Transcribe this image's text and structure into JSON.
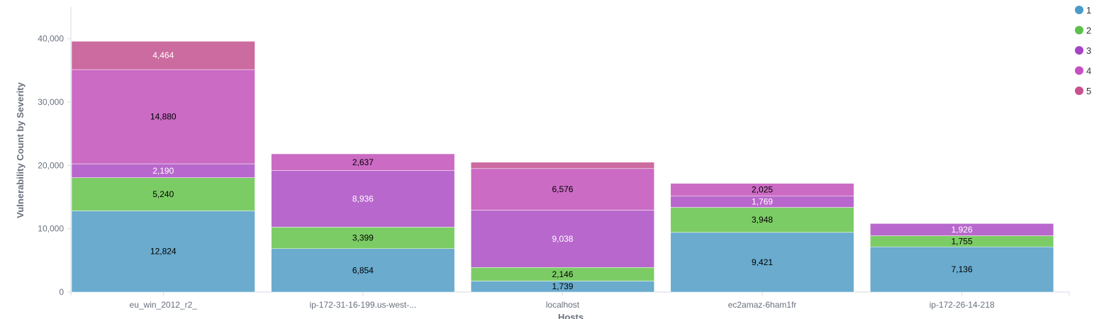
{
  "chart_data": {
    "type": "bar",
    "stacked": true,
    "title": "",
    "xlabel": "Hosts",
    "ylabel": "Vulnerability Count by Severity",
    "ylim": [
      0,
      45000
    ],
    "yticks": [
      0,
      10000,
      20000,
      30000,
      40000
    ],
    "ytick_labels": [
      "0",
      "10,000",
      "20,000",
      "30,000",
      "40,000"
    ],
    "grid": false,
    "legend_position": "top-right",
    "categories": [
      "eu_win_2012_r2_",
      "ip-172-31-16-199.us-west-...",
      "localhost",
      "ec2amaz-6ham1fr",
      "ip-172-26-14-218"
    ],
    "series": [
      {
        "name": "1",
        "color": "#6aabce",
        "legend_color": "#4a9bc8",
        "values": [
          12824,
          6854,
          1739,
          9421,
          7136
        ],
        "labels": [
          "12,824",
          "6,854",
          "1,739",
          "9,421",
          "7,136"
        ],
        "label_colors": [
          "#000000",
          "#000000",
          "#000000",
          "#000000",
          "#000000"
        ]
      },
      {
        "name": "2",
        "color": "#7ccc66",
        "legend_color": "#5dc04b",
        "values": [
          5240,
          3399,
          2146,
          3948,
          1755
        ],
        "labels": [
          "5,240",
          "3,399",
          "2,146",
          "3,948",
          "1,755"
        ],
        "label_colors": [
          "#000000",
          "#000000",
          "#000000",
          "#000000",
          "#000000"
        ]
      },
      {
        "name": "3",
        "color": "#b868cc",
        "legend_color": "#a644c6",
        "values": [
          2190,
          8936,
          9038,
          1769,
          1926
        ],
        "labels": [
          "2,190",
          "8,936",
          "9,038",
          "1,769",
          "1,926"
        ],
        "label_colors": [
          "#ffffff",
          "#ffffff",
          "#ffffff",
          "#ffffff",
          "#ffffff"
        ]
      },
      {
        "name": "4",
        "color": "#cb6bc4",
        "legend_color": "#c650c2",
        "values": [
          14880,
          2637,
          6576,
          2025,
          0
        ],
        "labels": [
          "14,880",
          "2,637",
          "6,576",
          "2,025",
          ""
        ],
        "label_colors": [
          "#000000",
          "#000000",
          "#000000",
          "#000000",
          "#000000"
        ]
      },
      {
        "name": "5",
        "color": "#cc6b9f",
        "legend_color": "#c9508e",
        "values": [
          4464,
          0,
          1000,
          0,
          0
        ],
        "labels": [
          "4,464",
          "",
          "",
          "",
          ""
        ],
        "label_colors": [
          "#ffffff",
          "#ffffff",
          "#ffffff",
          "#ffffff",
          "#ffffff"
        ]
      }
    ]
  }
}
